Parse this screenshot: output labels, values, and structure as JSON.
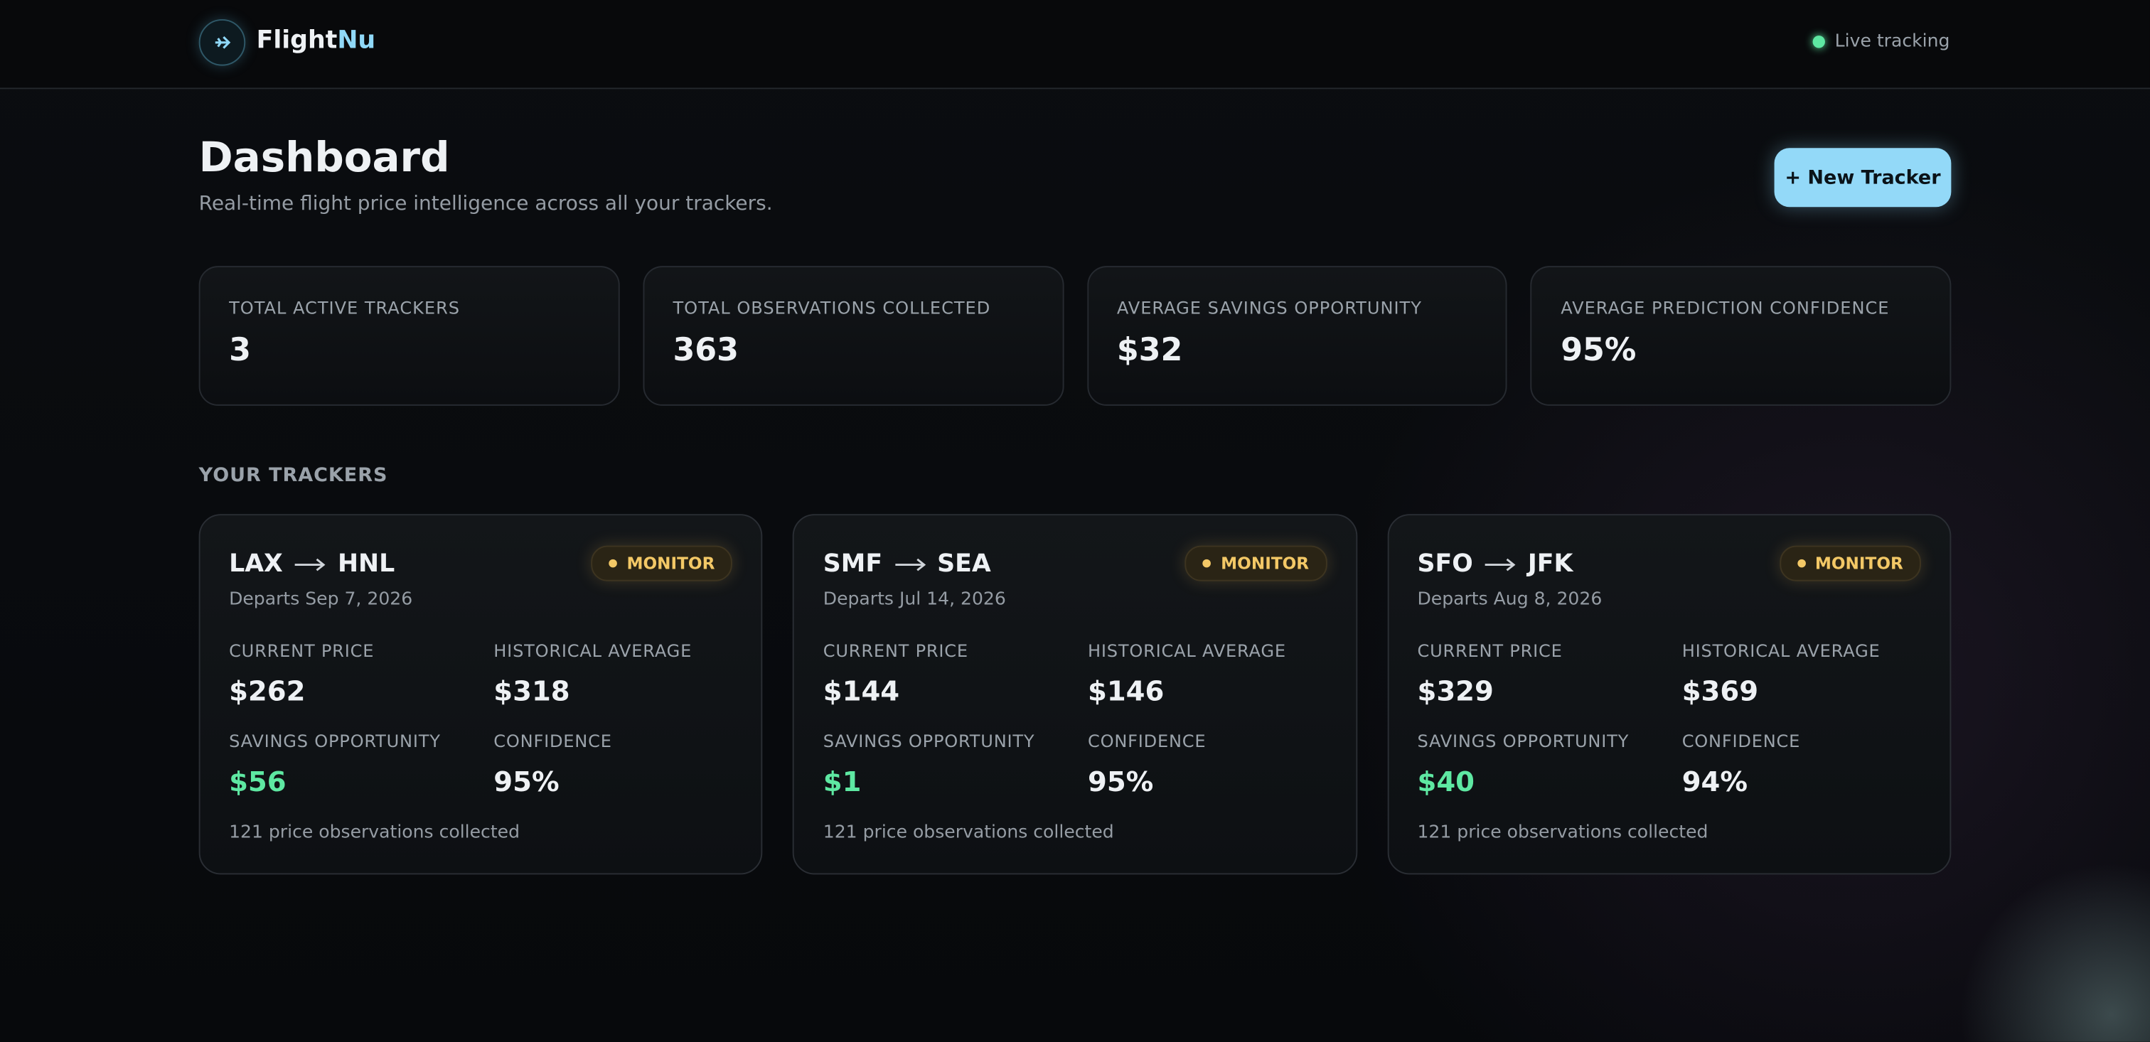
{
  "header": {
    "brand": {
      "part1": "Flight",
      "part2": "Nu"
    },
    "status": "Live tracking"
  },
  "title": "Dashboard",
  "subtitle": "Real-time flight price intelligence across all your trackers.",
  "button": "+ New Tracker",
  "stats": [
    {
      "label": "TOTAL ACTIVE TRACKERS",
      "value": "3"
    },
    {
      "label": "TOTAL OBSERVATIONS COLLECTED",
      "value": "363"
    },
    {
      "label": "AVERAGE SAVINGS OPPORTUNITY",
      "value": "$32"
    },
    {
      "label": "AVERAGE PREDICTION CONFIDENCE",
      "value": "95%"
    }
  ],
  "section_title": "YOUR TRACKERS",
  "trackers": [
    {
      "origin": "LAX",
      "destination": "HNL",
      "badge": "MONITOR",
      "departs": "Departs Sep 7, 2026",
      "metrics": [
        {
          "label": "CURRENT PRICE",
          "value": "$262"
        },
        {
          "label": "HISTORICAL AVERAGE",
          "value": "$318"
        },
        {
          "label": "SAVINGS OPPORTUNITY",
          "value": "$56"
        },
        {
          "label": "CONFIDENCE",
          "value": "95%"
        }
      ],
      "footer": "121 price observations collected"
    },
    {
      "origin": "SMF",
      "destination": "SEA",
      "badge": "MONITOR",
      "departs": "Departs Jul 14, 2026",
      "metrics": [
        {
          "label": "CURRENT PRICE",
          "value": "$144"
        },
        {
          "label": "HISTORICAL AVERAGE",
          "value": "$146"
        },
        {
          "label": "SAVINGS OPPORTUNITY",
          "value": "$1"
        },
        {
          "label": "CONFIDENCE",
          "value": "95%"
        }
      ],
      "footer": "121 price observations collected"
    },
    {
      "origin": "SFO",
      "destination": "JFK",
      "badge": "MONITOR",
      "departs": "Departs Aug 8, 2026",
      "metrics": [
        {
          "label": "CURRENT PRICE",
          "value": "$329"
        },
        {
          "label": "HISTORICAL AVERAGE",
          "value": "$369"
        },
        {
          "label": "SAVINGS OPPORTUNITY",
          "value": "$40"
        },
        {
          "label": "CONFIDENCE",
          "value": "94%"
        }
      ],
      "footer": "121 price observations collected"
    }
  ]
}
